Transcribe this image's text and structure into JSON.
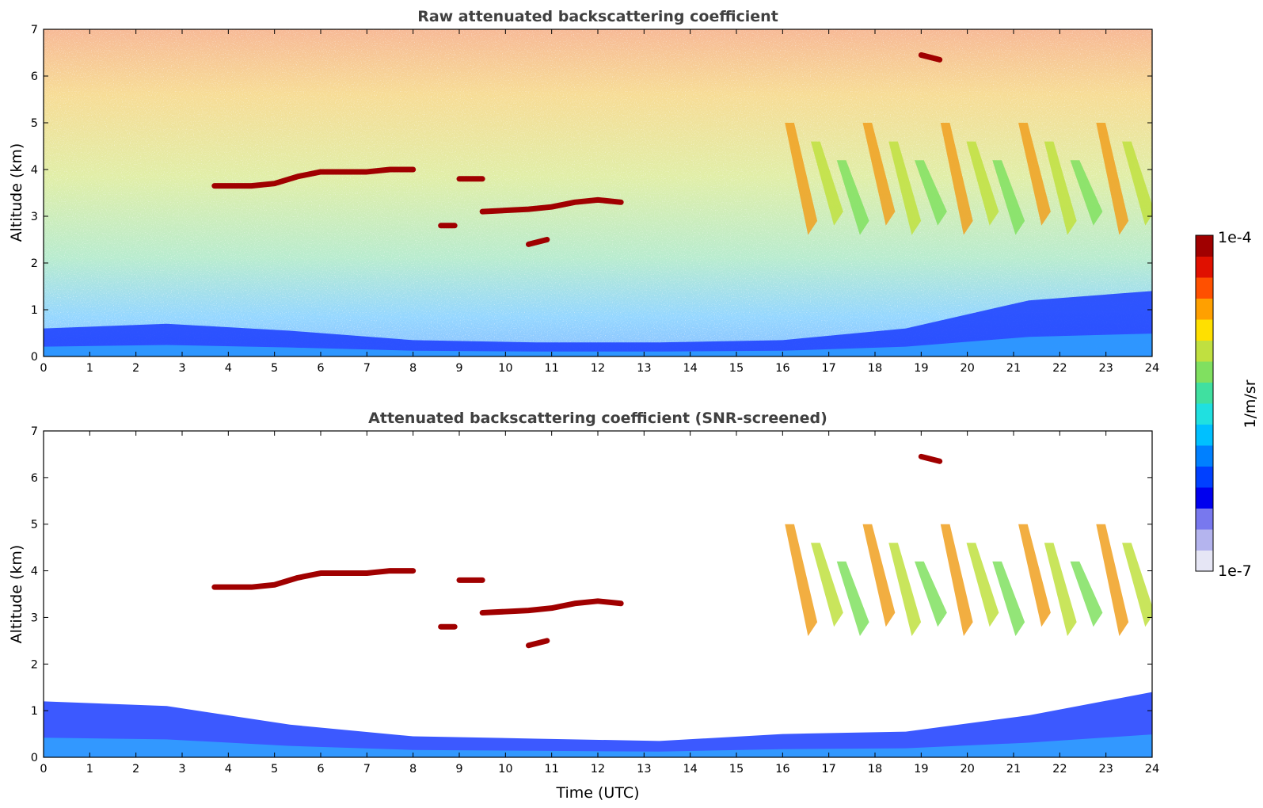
{
  "chart_data": [
    {
      "type": "heatmap",
      "title": "Raw attenuated backscattering coefficient",
      "xlabel": "",
      "ylabel": "Altitude (km)",
      "xlim": [
        0,
        24
      ],
      "ylim": [
        0,
        7
      ],
      "xticks": [
        "0",
        "1",
        "2",
        "3",
        "4",
        "5",
        "6",
        "7",
        "8",
        "9",
        "10",
        "11",
        "12",
        "13",
        "14",
        "15",
        "16",
        "17",
        "18",
        "19",
        "20",
        "21",
        "22",
        "23",
        "24"
      ],
      "yticks": [
        "0",
        "1",
        "2",
        "3",
        "4",
        "5",
        "6",
        "7"
      ],
      "background": "noisy",
      "features": [
        {
          "kind": "boundary_layer",
          "x": [
            0,
            24
          ],
          "y_top": [
            0.6,
            0.7,
            0.55,
            0.35,
            0.3,
            0.3,
            0.35,
            0.6,
            1.2,
            1.4
          ]
        },
        {
          "kind": "cloud_layer",
          "x": [
            3.7,
            4.5,
            5.0,
            5.5,
            6.0,
            7.0,
            7.5,
            8.0
          ],
          "y": [
            3.65,
            3.65,
            3.7,
            3.85,
            3.95,
            3.95,
            4.0,
            4.0
          ],
          "level": "1e-4"
        },
        {
          "kind": "cloud_layer",
          "x": [
            8.6,
            8.9
          ],
          "y": [
            2.8,
            2.8
          ],
          "level": "1e-4"
        },
        {
          "kind": "cloud_layer",
          "x": [
            9.0,
            9.5
          ],
          "y": [
            3.8,
            3.8
          ],
          "level": "1e-4"
        },
        {
          "kind": "cloud_layer",
          "x": [
            9.5,
            10.5,
            11.0,
            11.5,
            12.0,
            12.5
          ],
          "y": [
            3.1,
            3.15,
            3.2,
            3.3,
            3.35,
            3.3
          ],
          "level": "1e-4"
        },
        {
          "kind": "cloud_layer",
          "x": [
            10.5,
            10.9
          ],
          "y": [
            2.4,
            2.5
          ],
          "level": "1e-4"
        },
        {
          "kind": "cloud_layer",
          "x": [
            19.0,
            19.4
          ],
          "y": [
            6.45,
            6.35
          ],
          "level": "1e-4"
        },
        {
          "kind": "virga_streaks",
          "x_range": [
            16.3,
            23.6
          ],
          "y_range": [
            2.6,
            5.0
          ],
          "level": "1e-5"
        }
      ]
    },
    {
      "type": "heatmap",
      "title": "Attenuated backscattering coefficient (SNR-screened)",
      "xlabel": "Time (UTC)",
      "ylabel": "Altitude (km)",
      "xlim": [
        0,
        24
      ],
      "ylim": [
        0,
        7
      ],
      "xticks": [
        "0",
        "1",
        "2",
        "3",
        "4",
        "5",
        "6",
        "7",
        "8",
        "9",
        "10",
        "11",
        "12",
        "13",
        "14",
        "15",
        "16",
        "17",
        "18",
        "19",
        "20",
        "21",
        "22",
        "23",
        "24"
      ],
      "yticks": [
        "0",
        "1",
        "2",
        "3",
        "4",
        "5",
        "6",
        "7"
      ],
      "background": "screened",
      "features": [
        {
          "kind": "boundary_layer",
          "x": [
            0,
            24
          ],
          "y_top": [
            1.2,
            1.1,
            0.7,
            0.45,
            0.4,
            0.35,
            0.5,
            0.55,
            0.9,
            1.4
          ]
        },
        {
          "kind": "cloud_layer",
          "x": [
            3.7,
            4.5,
            5.0,
            5.5,
            6.0,
            7.0,
            7.5,
            8.0
          ],
          "y": [
            3.65,
            3.65,
            3.7,
            3.85,
            3.95,
            3.95,
            4.0,
            4.0
          ],
          "level": "1e-4"
        },
        {
          "kind": "cloud_layer",
          "x": [
            8.6,
            8.9
          ],
          "y": [
            2.8,
            2.8
          ],
          "level": "1e-4"
        },
        {
          "kind": "cloud_layer",
          "x": [
            9.0,
            9.5
          ],
          "y": [
            3.8,
            3.8
          ],
          "level": "1e-4"
        },
        {
          "kind": "cloud_layer",
          "x": [
            9.5,
            10.5,
            11.0,
            11.5,
            12.0,
            12.5
          ],
          "y": [
            3.1,
            3.15,
            3.2,
            3.3,
            3.35,
            3.3
          ],
          "level": "1e-4"
        },
        {
          "kind": "cloud_layer",
          "x": [
            10.5,
            10.9
          ],
          "y": [
            2.4,
            2.5
          ],
          "level": "1e-4"
        },
        {
          "kind": "cloud_layer",
          "x": [
            19.0,
            19.4
          ],
          "y": [
            6.45,
            6.35
          ],
          "level": "1e-4"
        },
        {
          "kind": "virga_streaks",
          "x_range": [
            16.3,
            23.6
          ],
          "y_range": [
            2.6,
            5.0
          ],
          "level": "1e-5"
        }
      ]
    }
  ],
  "colorbar": {
    "label": "1/m/sr",
    "max_label": "1e-4",
    "min_label": "1e-7",
    "scale": "log",
    "colormap": "jet",
    "colors": [
      "#e6e6f5",
      "#b4b4ee",
      "#7878ee",
      "#0000ee",
      "#0040ff",
      "#0080ff",
      "#00c0ff",
      "#20e0e0",
      "#40e0a0",
      "#80e060",
      "#c0e040",
      "#ffe000",
      "#ffa000",
      "#ff5000",
      "#e01000",
      "#a00000"
    ]
  }
}
